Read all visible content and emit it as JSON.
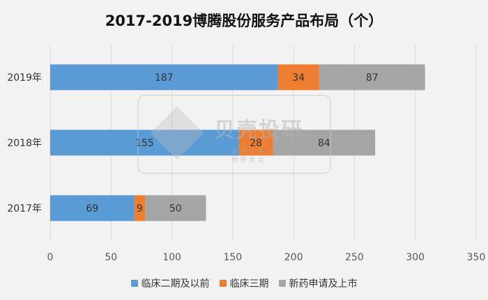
{
  "chart_data": {
    "type": "bar",
    "orientation": "horizontal",
    "stacked": true,
    "title": "2017-2019博腾股份服务产品布局（个）",
    "categories": [
      "2019年",
      "2018年",
      "2017年"
    ],
    "series": [
      {
        "name": "临床二期及以前",
        "color": "#5b9bd5",
        "values": [
          187,
          155,
          69
        ]
      },
      {
        "name": "临床三期",
        "color": "#ed7d31",
        "values": [
          34,
          28,
          9
        ]
      },
      {
        "name": "新药申请及上市",
        "color": "#a5a5a5",
        "values": [
          87,
          84,
          50
        ]
      }
    ],
    "xlim": [
      0,
      350
    ],
    "xticks": [
      0,
      50,
      100,
      150,
      200,
      250,
      300,
      350
    ],
    "grid": true,
    "legend": "bottom"
  },
  "watermark": {
    "text": "贝壳投研",
    "subtext": "发现价值 传递价值 投入你所关注"
  }
}
